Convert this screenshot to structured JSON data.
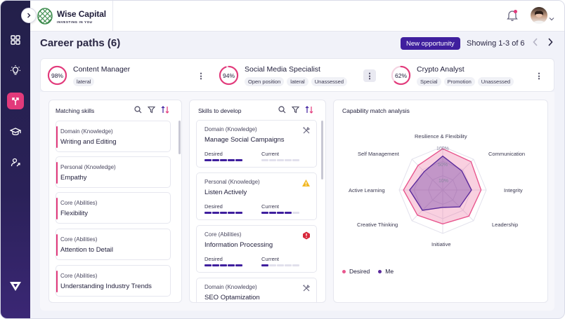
{
  "brand": {
    "name": "Wise Capital",
    "tagline": "INVESTING IN YOU"
  },
  "page": {
    "title": "Career paths (6)",
    "new_button": "New opportunity",
    "showing": "Showing 1-3 of 6"
  },
  "tabs": [
    {
      "percent": 98,
      "label": "98%",
      "name": "Content Manager",
      "tags": [
        "lateral"
      ]
    },
    {
      "percent": 94,
      "label": "94%",
      "name": "Social Media Specialist",
      "tags": [
        "Open position",
        "lateral",
        "Unassessed"
      ]
    },
    {
      "percent": 62,
      "label": "62%",
      "name": "Crypto Analyst",
      "tags": [
        "Special",
        "Promotion",
        "Unassessed"
      ]
    }
  ],
  "matching": {
    "title": "Matching skills",
    "items": [
      {
        "category": "Domain (Knowledge)",
        "name": "Writing and Editing"
      },
      {
        "category": "Personal (Knowledge)",
        "name": "Empathy"
      },
      {
        "category": "Core (Abilities)",
        "name": "Flexibility"
      },
      {
        "category": "Core (Abilities)",
        "name": "Attention to Detail"
      },
      {
        "category": "Core (Abilities)",
        "name": "Understanding Industry Trends"
      }
    ]
  },
  "develop": {
    "title": "Skills to develop",
    "desired_label": "Desired",
    "current_label": "Current",
    "items": [
      {
        "category": "Domain (Knowledge)",
        "name": "Manage Social Campaigns",
        "icon": "tools-icon",
        "desired": 5,
        "current": 0
      },
      {
        "category": "Personal (Knowledge)",
        "name": "Listen Actively",
        "icon": "warning-icon",
        "desired": 5,
        "current": 4
      },
      {
        "category": "Core (Abilities)",
        "name": "Information Processing",
        "icon": "alert-icon",
        "desired": 5,
        "current": 1
      },
      {
        "category": "Domain (Knowledge)",
        "name": "SEO Optamization",
        "icon": "tools-icon",
        "desired": 5,
        "current": 0
      }
    ]
  },
  "radar": {
    "title": "Capability match analysis",
    "axes": [
      "Resilience & Flexibility",
      "Communication",
      "Integrity",
      "Leadership",
      "Initiative",
      "Creative Thinking",
      "Active Learning",
      "Self Management"
    ],
    "pct_labels": [
      "100%",
      "50%",
      "10%"
    ],
    "desired": [
      0.95,
      0.92,
      0.88,
      0.85,
      0.78,
      0.82,
      0.9,
      0.8
    ],
    "me": [
      0.78,
      0.62,
      0.66,
      0.55,
      0.4,
      0.66,
      0.76,
      0.6
    ],
    "legend_desired": "Desired",
    "legend_me": "Me",
    "desired_color": "#e8568e",
    "me_color": "#5b2a9c"
  },
  "colors": {
    "accent": "#e23a7b",
    "primary": "#3f1f9e"
  }
}
